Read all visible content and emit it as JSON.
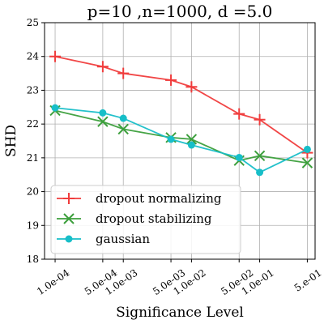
{
  "chart_data": {
    "type": "line",
    "title": "p=10 ,n=1000, d =5.0",
    "xlabel": "Significance Level",
    "ylabel": "SHD",
    "x_scale": "log",
    "xlim": [
      7e-05,
      0.65
    ],
    "ylim": [
      18,
      25
    ],
    "x": [
      0.0001,
      0.0005,
      0.001,
      0.005,
      0.01,
      0.05,
      0.1,
      0.5
    ],
    "xtick_labels": [
      "1.0e-04",
      "5.0e-04",
      "1.0e-03",
      "5.0e-03",
      "1.0e-02",
      "5.0e-02",
      "1.0e-01",
      "5.e-01"
    ],
    "yticks": [
      18,
      19,
      20,
      21,
      22,
      23,
      24,
      25
    ],
    "ytick_labels": [
      "18",
      "19",
      "20",
      "21",
      "22",
      "23",
      "24",
      "25"
    ],
    "grid": true,
    "legend_position": "lower-left",
    "series": [
      {
        "name": "dropout normalizing",
        "color": "#f03c3c",
        "marker": "plus",
        "values": [
          24.0,
          23.7,
          23.5,
          23.3,
          23.1,
          22.3,
          22.13,
          21.15
        ]
      },
      {
        "name": "dropout stabilizing",
        "color": "#3c9f3c",
        "marker": "x",
        "values": [
          22.4,
          22.07,
          21.85,
          21.6,
          21.55,
          20.92,
          21.06,
          20.85
        ]
      },
      {
        "name": "gaussian",
        "color": "#17bec8",
        "marker": "circle",
        "values": [
          22.48,
          22.33,
          22.17,
          21.55,
          21.38,
          21.01,
          20.57,
          21.25
        ]
      }
    ]
  }
}
